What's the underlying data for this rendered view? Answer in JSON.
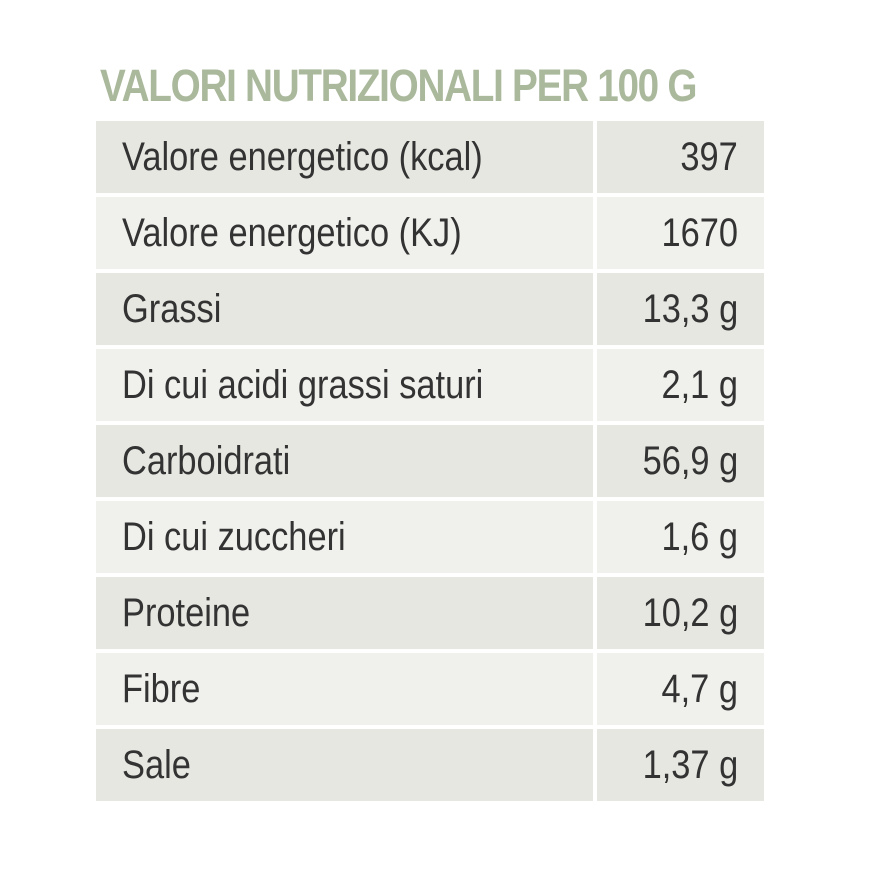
{
  "title": "VALORI NUTRIZIONALI PER 100 G",
  "rows": [
    {
      "label": "Valore energetico (kcal)",
      "value": "397"
    },
    {
      "label": "Valore energetico (KJ)",
      "value": "1670"
    },
    {
      "label": "Grassi",
      "value": "13,3 g"
    },
    {
      "label": "Di cui acidi grassi saturi",
      "value": "2,1 g"
    },
    {
      "label": "Carboidrati",
      "value": "56,9 g"
    },
    {
      "label": "Di cui zuccheri",
      "value": "1,6 g"
    },
    {
      "label": "Proteine",
      "value": "10,2 g"
    },
    {
      "label": "Fibre",
      "value": "4,7 g"
    },
    {
      "label": "Sale",
      "value": "1,37 g"
    }
  ],
  "colors": {
    "title": "#aab89c",
    "row_dark": "#e6e7e1",
    "row_light": "#f0f1ec",
    "text": "#333333"
  }
}
